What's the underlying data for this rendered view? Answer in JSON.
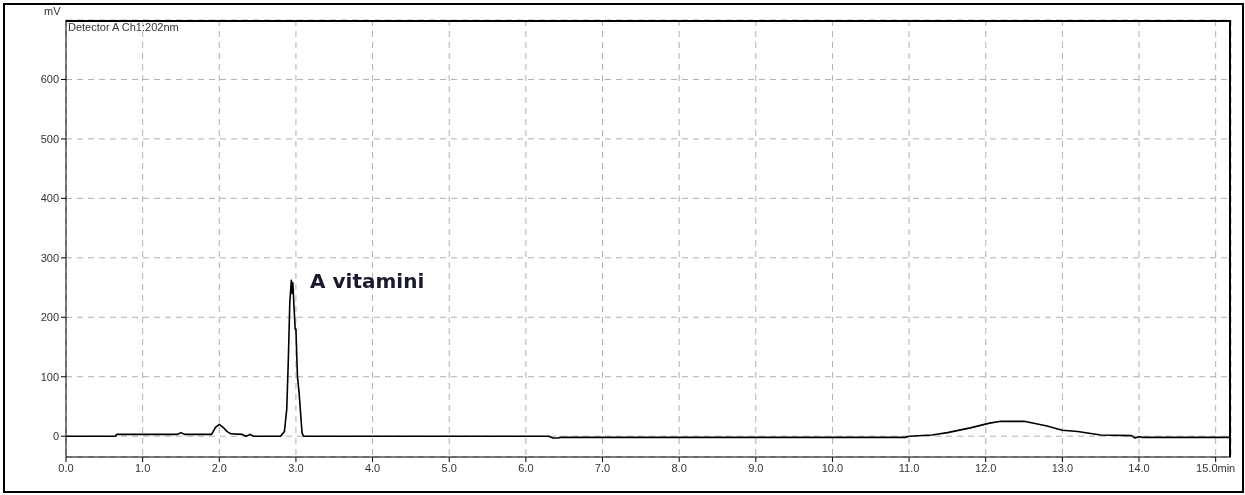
{
  "chart_data": {
    "type": "line",
    "ylabel": "mV",
    "annotations": [
      "Detector A Ch1:202nm",
      {
        "text": "A vitamini",
        "x": 2.95,
        "y": 262
      }
    ],
    "series": [
      {
        "color": "#000000",
        "x": [
          0,
          0.65,
          0.66,
          1.45,
          1.5,
          1.55,
          1.9,
          1.95,
          2.0,
          2.05,
          2.1,
          2.15,
          2.3,
          2.35,
          2.4,
          2.45,
          2.8,
          2.85,
          2.88,
          2.9,
          2.92,
          2.94,
          2.95,
          2.96,
          2.97,
          2.99,
          3.0,
          3.02,
          3.04,
          3.06,
          3.08,
          3.1,
          6.3,
          6.35,
          6.42,
          6.45,
          10.95,
          11.0,
          11.3,
          11.5,
          11.8,
          12.05,
          12.2,
          12.5,
          12.8,
          13.0,
          13.2,
          13.5,
          13.9,
          13.95,
          14.0,
          14.05,
          15.2
        ],
        "values": [
          0,
          0,
          3,
          3,
          6,
          3,
          3,
          15,
          20,
          15,
          8,
          4,
          3,
          0,
          3,
          0,
          0,
          8,
          45,
          125,
          225,
          262,
          240,
          258,
          230,
          180,
          180,
          100,
          75,
          40,
          5,
          0,
          0,
          -3,
          -3,
          -2,
          -2,
          0,
          2,
          6,
          14,
          22,
          25,
          25,
          17,
          10,
          8,
          2,
          1,
          -3,
          -1,
          -2,
          -2
        ]
      }
    ],
    "xlim": [
      0,
      15.2
    ],
    "xticks": [
      {
        "value": 0,
        "label": "0.0"
      },
      {
        "value": 1,
        "label": "1.0"
      },
      {
        "value": 2,
        "label": "2.0"
      },
      {
        "value": 3,
        "label": "3.0"
      },
      {
        "value": 4,
        "label": "4.0"
      },
      {
        "value": 5,
        "label": "5.0"
      },
      {
        "value": 6,
        "label": "6.0"
      },
      {
        "value": 7,
        "label": "7.0"
      },
      {
        "value": 8,
        "label": "8.0"
      },
      {
        "value": 9,
        "label": "9.0"
      },
      {
        "value": 10,
        "label": "10.0"
      },
      {
        "value": 11,
        "label": "11.0"
      },
      {
        "value": 12,
        "label": "12.0"
      },
      {
        "value": 13,
        "label": "13.0"
      },
      {
        "value": 14,
        "label": "14.0"
      },
      {
        "value": 15,
        "label": "15.0min"
      }
    ],
    "ylim": [
      -35,
      700
    ],
    "yticks": [
      0,
      100,
      200,
      300,
      400,
      500,
      600
    ],
    "grid": true,
    "legend": false,
    "marker": "none",
    "line_style": "solid"
  }
}
